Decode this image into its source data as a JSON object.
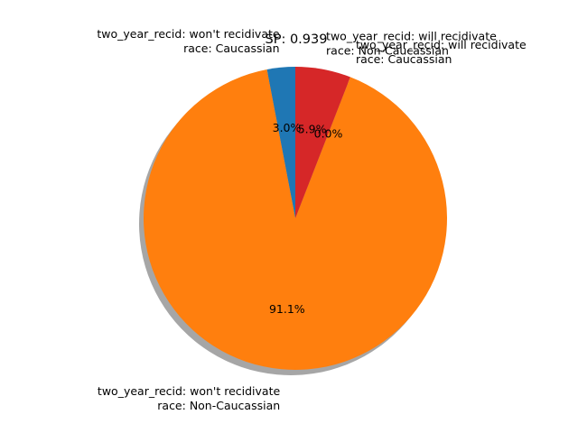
{
  "chart_data": {
    "type": "pie",
    "title": "SP: 0.939",
    "slices": [
      {
        "label": [
          "two_year_recid: won't recidivate",
          "race: Caucassian"
        ],
        "value": 3.0,
        "pct_label": "3.0%",
        "color": "#1f77b4"
      },
      {
        "label": [
          "two_year_recid: won't recidivate",
          "race: Non-Caucassian"
        ],
        "value": 91.1,
        "pct_label": "91.1%",
        "color": "#ff7f0e"
      },
      {
        "label": [
          "two_year_recid: will recidivate",
          "race: Caucassian"
        ],
        "value": 0.0,
        "pct_label": "0.0%",
        "color": "#2ca02c"
      },
      {
        "label": [
          "two_year_recid: will recidivate",
          "race: Non-Caucassian"
        ],
        "value": 5.9,
        "pct_label": "5.9%",
        "color": "#d62728"
      }
    ],
    "start_angle_deg": 90,
    "direction": "counterclockwise",
    "shadow": true,
    "legend": "none"
  }
}
